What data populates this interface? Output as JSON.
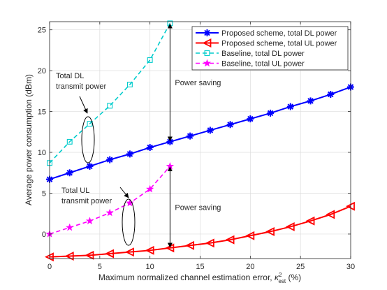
{
  "chart_data": {
    "type": "line",
    "xlabel": "Maximum normalized channel estimation error, κ²est (%)",
    "xlabel_parts": {
      "main": "Maximum normalized channel estimation error, ",
      "symbol": "κ",
      "sup": "2",
      "sub": "est",
      "unit": " (%)"
    },
    "ylabel": "Average power consumption (dBm)",
    "xlim": [
      0,
      30
    ],
    "ylim": [
      -3,
      26
    ],
    "xticks": [
      0,
      5,
      10,
      15,
      20,
      25,
      30
    ],
    "yticks": [
      0,
      5,
      10,
      15,
      20,
      25
    ],
    "grid": true,
    "legend_position": "top-right",
    "series": [
      {
        "name": "Proposed scheme, total DL power",
        "color": "#0000ff",
        "marker": "asterisk",
        "line": "solid",
        "x": [
          0,
          2,
          4,
          6,
          8,
          10,
          12,
          14,
          16,
          18,
          20,
          22,
          24,
          26,
          28,
          30
        ],
        "y": [
          6.7,
          7.5,
          8.3,
          9.1,
          9.8,
          10.6,
          11.3,
          12.0,
          12.7,
          13.4,
          14.1,
          14.8,
          15.6,
          16.3,
          17.1,
          18.0
        ]
      },
      {
        "name": "Proposed scheme, total UL power",
        "color": "#ff0000",
        "marker": "triangle-left",
        "line": "solid",
        "x": [
          0,
          2,
          4,
          6,
          8,
          10,
          12,
          14,
          16,
          18,
          20,
          22,
          24,
          26,
          28,
          30
        ],
        "y": [
          -2.8,
          -2.7,
          -2.6,
          -2.4,
          -2.2,
          -2.0,
          -1.7,
          -1.4,
          -1.1,
          -0.7,
          -0.2,
          0.3,
          0.9,
          1.6,
          2.4,
          3.4
        ]
      },
      {
        "name": "Baseline, total DL power",
        "color": "#00cccc",
        "marker": "square",
        "line": "dashed",
        "x": [
          0,
          2,
          4,
          6,
          8,
          10,
          12
        ],
        "y": [
          8.7,
          11.3,
          13.5,
          15.7,
          18.3,
          21.3,
          25.8
        ]
      },
      {
        "name": "Baseline, total UL power",
        "color": "#ff00ff",
        "marker": "star",
        "line": "dashed",
        "x": [
          0,
          2,
          4,
          6,
          8,
          10,
          12
        ],
        "y": [
          0.0,
          0.8,
          1.6,
          2.6,
          3.8,
          5.5,
          8.3
        ]
      }
    ],
    "annotations": [
      {
        "id": "total-dl",
        "lines": [
          "Total DL",
          "transmit power"
        ]
      },
      {
        "id": "total-ul",
        "lines": [
          "Total UL",
          "transmit power"
        ]
      },
      {
        "id": "saving-dl",
        "text": "Power saving",
        "x": 12,
        "from": 25.8,
        "to": 11.3
      },
      {
        "id": "saving-ul",
        "text": "Power saving",
        "x": 12,
        "from": 8.3,
        "to": -1.7
      }
    ]
  }
}
